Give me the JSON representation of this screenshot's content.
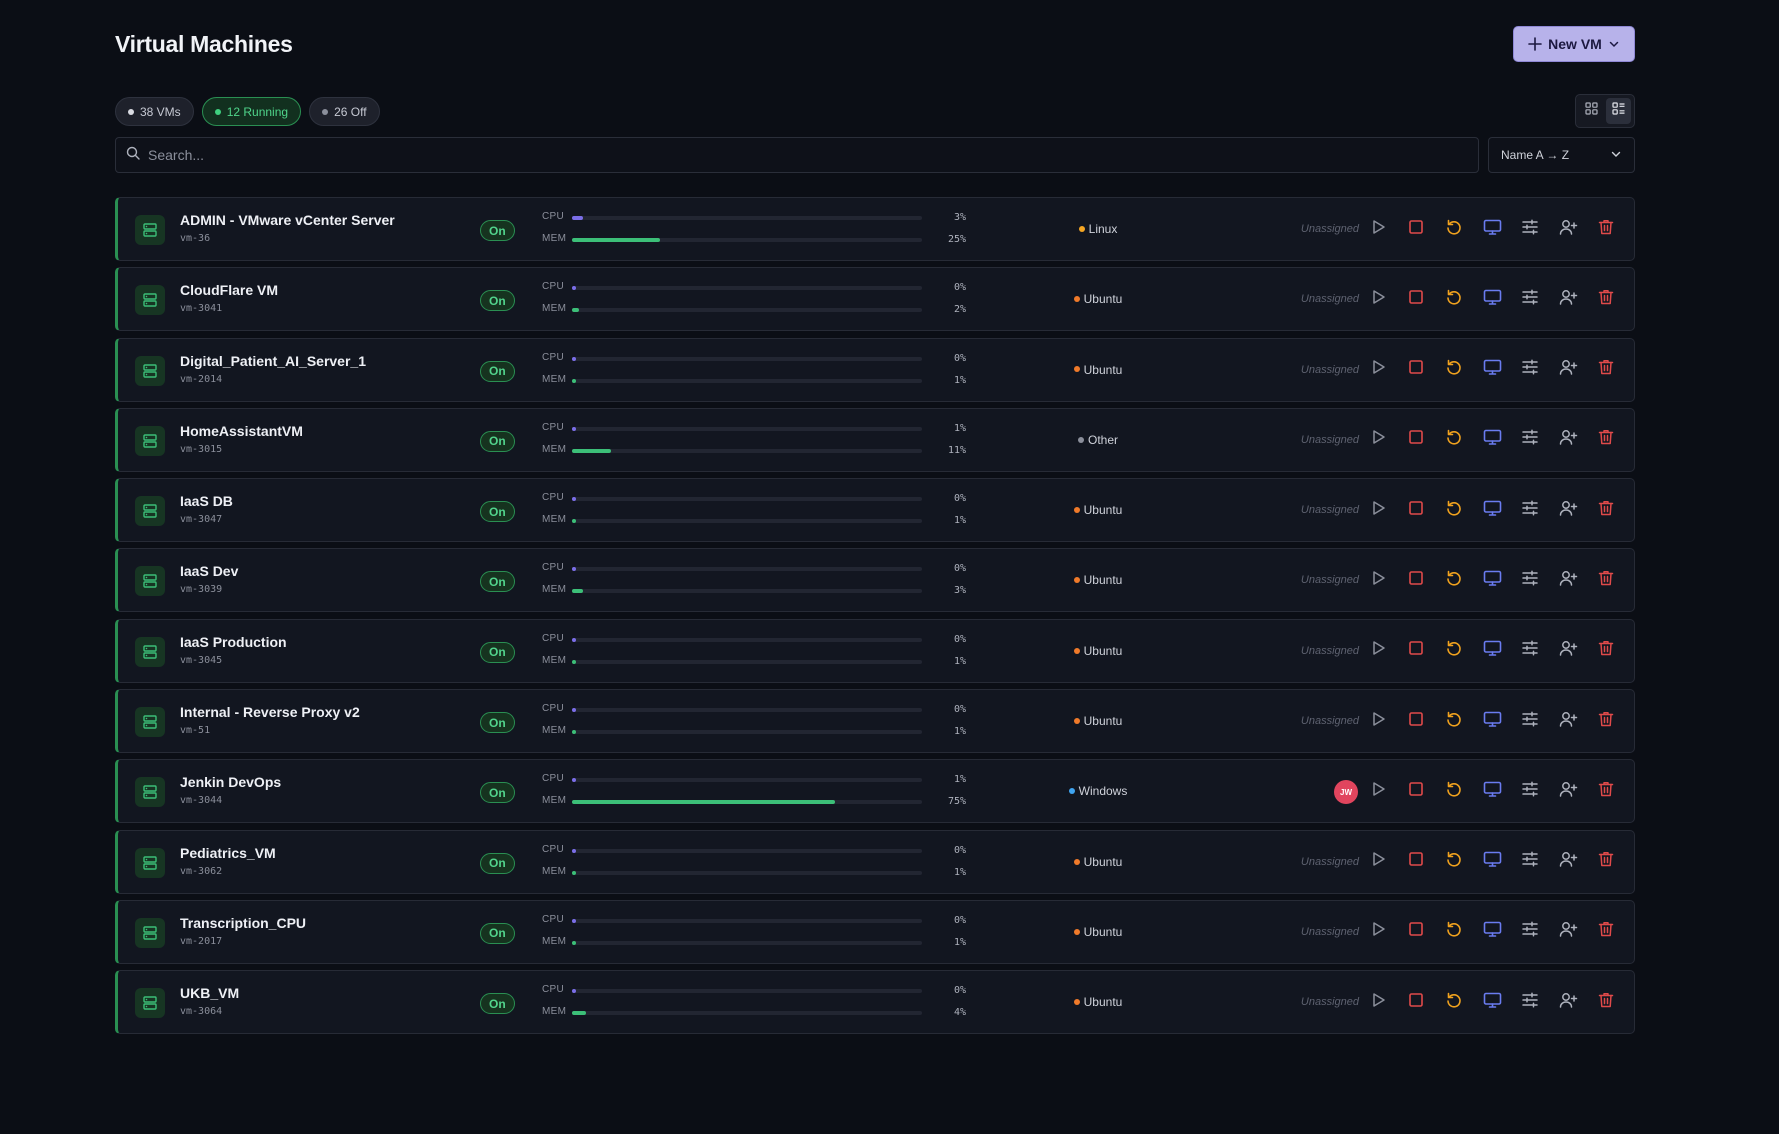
{
  "header": {
    "title": "Virtual Machines",
    "new_vm_label": "New VM"
  },
  "filters": {
    "chips": [
      {
        "label": "38 VMs",
        "dot_color": "#d9dbe2"
      },
      {
        "label": "12 Running",
        "dot_color": "#3fd07f"
      },
      {
        "label": "26 Off",
        "dot_color": "#8b8f9b"
      }
    ]
  },
  "search": {
    "placeholder": "Search..."
  },
  "sort": {
    "value": "Name A → Z"
  },
  "colors": {
    "accent": "#b7b2ea",
    "running": "#2a8f52",
    "cpu": "#7b6ee8",
    "mem": "#3cbf78",
    "os": {
      "Linux": "#f5a623",
      "Ubuntu": "#f07a2a",
      "Other": "#8b8f9b",
      "Windows": "#3fa4f0"
    }
  },
  "labels": {
    "cpu": "CPU",
    "mem": "MEM"
  },
  "vms": [
    {
      "name": "ADMIN - VMware vCenter Server",
      "id": "vm-36",
      "status": "On",
      "cpu": 3,
      "mem": 25,
      "os": "Linux",
      "assignee": "Unassigned"
    },
    {
      "name": "CloudFlare VM",
      "id": "vm-3041",
      "status": "On",
      "cpu": 0,
      "mem": 2,
      "os": "Ubuntu",
      "assignee": "Unassigned"
    },
    {
      "name": "Digital_Patient_AI_Server_1",
      "id": "vm-2014",
      "status": "On",
      "cpu": 0,
      "mem": 1,
      "os": "Ubuntu",
      "assignee": "Unassigned"
    },
    {
      "name": "HomeAssistantVM",
      "id": "vm-3015",
      "status": "On",
      "cpu": 1,
      "mem": 11,
      "os": "Other",
      "assignee": "Unassigned"
    },
    {
      "name": "IaaS DB",
      "id": "vm-3047",
      "status": "On",
      "cpu": 0,
      "mem": 1,
      "os": "Ubuntu",
      "assignee": "Unassigned"
    },
    {
      "name": "IaaS Dev",
      "id": "vm-3039",
      "status": "On",
      "cpu": 0,
      "mem": 3,
      "os": "Ubuntu",
      "assignee": "Unassigned"
    },
    {
      "name": "IaaS Production",
      "id": "vm-3045",
      "status": "On",
      "cpu": 0,
      "mem": 1,
      "os": "Ubuntu",
      "assignee": "Unassigned"
    },
    {
      "name": "Internal - Reverse Proxy v2",
      "id": "vm-51",
      "status": "On",
      "cpu": 0,
      "mem": 1,
      "os": "Ubuntu",
      "assignee": "Unassigned"
    },
    {
      "name": "Jenkin DevOps",
      "id": "vm-3044",
      "status": "On",
      "cpu": 1,
      "mem": 75,
      "os": "Windows",
      "assignee": "",
      "avatar": "JW"
    },
    {
      "name": "Pediatrics_VM",
      "id": "vm-3062",
      "status": "On",
      "cpu": 0,
      "mem": 1,
      "os": "Ubuntu",
      "assignee": "Unassigned"
    },
    {
      "name": "Transcription_CPU",
      "id": "vm-2017",
      "status": "On",
      "cpu": 0,
      "mem": 1,
      "os": "Ubuntu",
      "assignee": "Unassigned"
    },
    {
      "name": "UKB_VM",
      "id": "vm-3064",
      "status": "On",
      "cpu": 0,
      "mem": 4,
      "os": "Ubuntu",
      "assignee": "Unassigned"
    }
  ],
  "row_actions": [
    {
      "name": "start-icon",
      "color": "#8b8f9b"
    },
    {
      "name": "stop-icon",
      "color": "#e04a4a"
    },
    {
      "name": "restart-icon",
      "color": "#f0a21e"
    },
    {
      "name": "console-icon",
      "color": "#6a7cf0"
    },
    {
      "name": "settings-sliders-icon",
      "color": "#aeb2bd"
    },
    {
      "name": "assign-user-icon",
      "color": "#aeb2bd"
    },
    {
      "name": "delete-icon",
      "color": "#e04a4a"
    }
  ]
}
